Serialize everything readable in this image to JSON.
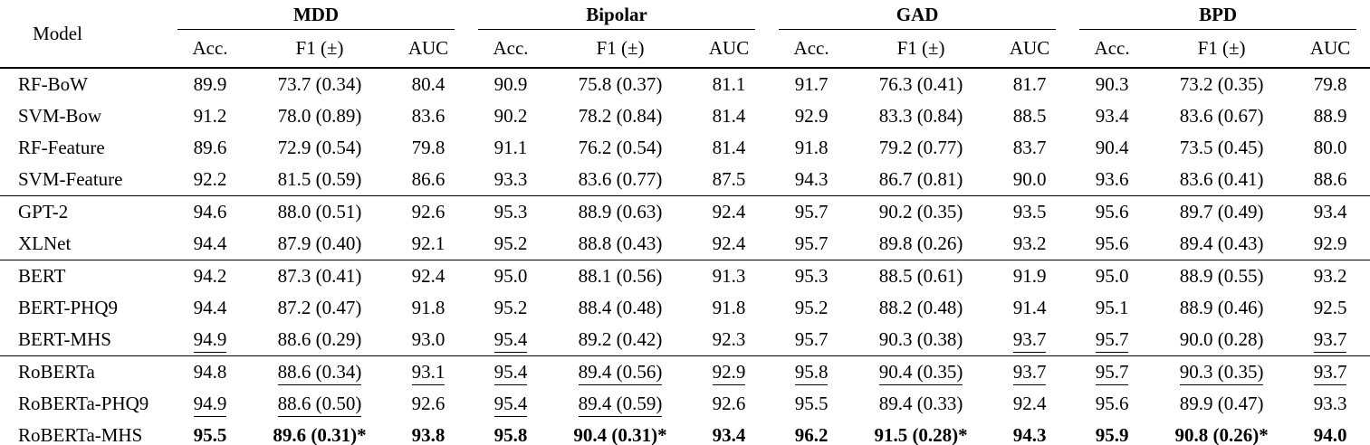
{
  "table": {
    "model_header": "Model",
    "groups": [
      {
        "label": "MDD"
      },
      {
        "label": "Bipolar"
      },
      {
        "label": "GAD"
      },
      {
        "label": "BPD"
      }
    ],
    "subheaders": [
      "Acc.",
      "F1 (±)",
      "AUC"
    ],
    "section_breaks_after": [
      3,
      5,
      8
    ],
    "rows": [
      {
        "model": "RF-BoW",
        "cells": [
          {
            "v": "89.9"
          },
          {
            "v": "73.7 (0.34)"
          },
          {
            "v": "80.4"
          },
          {
            "v": "90.9"
          },
          {
            "v": "75.8 (0.37)"
          },
          {
            "v": "81.1"
          },
          {
            "v": "91.7"
          },
          {
            "v": "76.3 (0.41)"
          },
          {
            "v": "81.7"
          },
          {
            "v": "90.3"
          },
          {
            "v": "73.2 (0.35)"
          },
          {
            "v": "79.8"
          }
        ]
      },
      {
        "model": "SVM-Bow",
        "cells": [
          {
            "v": "91.2"
          },
          {
            "v": "78.0 (0.89)"
          },
          {
            "v": "83.6"
          },
          {
            "v": "90.2"
          },
          {
            "v": "78.2 (0.84)"
          },
          {
            "v": "81.4"
          },
          {
            "v": "92.9"
          },
          {
            "v": "83.3 (0.84)"
          },
          {
            "v": "88.5"
          },
          {
            "v": "93.4"
          },
          {
            "v": "83.6 (0.67)"
          },
          {
            "v": "88.9"
          }
        ]
      },
      {
        "model": "RF-Feature",
        "cells": [
          {
            "v": "89.6"
          },
          {
            "v": "72.9 (0.54)"
          },
          {
            "v": "79.8"
          },
          {
            "v": "91.1"
          },
          {
            "v": "76.2 (0.54)"
          },
          {
            "v": "81.4"
          },
          {
            "v": "91.8"
          },
          {
            "v": "79.2 (0.77)"
          },
          {
            "v": "83.7"
          },
          {
            "v": "90.4"
          },
          {
            "v": "73.5 (0.45)"
          },
          {
            "v": "80.0"
          }
        ]
      },
      {
        "model": "SVM-Feature",
        "cells": [
          {
            "v": "92.2"
          },
          {
            "v": "81.5 (0.59)"
          },
          {
            "v": "86.6"
          },
          {
            "v": "93.3"
          },
          {
            "v": "83.6 (0.77)"
          },
          {
            "v": "87.5"
          },
          {
            "v": "94.3"
          },
          {
            "v": "86.7 (0.81)"
          },
          {
            "v": "90.0"
          },
          {
            "v": "93.6"
          },
          {
            "v": "83.6 (0.41)"
          },
          {
            "v": "88.6"
          }
        ]
      },
      {
        "model": "GPT-2",
        "cells": [
          {
            "v": "94.6"
          },
          {
            "v": "88.0 (0.51)"
          },
          {
            "v": "92.6"
          },
          {
            "v": "95.3"
          },
          {
            "v": "88.9 (0.63)"
          },
          {
            "v": "92.4"
          },
          {
            "v": "95.7"
          },
          {
            "v": "90.2 (0.35)"
          },
          {
            "v": "93.5"
          },
          {
            "v": "95.6"
          },
          {
            "v": "89.7 (0.49)"
          },
          {
            "v": "93.4"
          }
        ]
      },
      {
        "model": "XLNet",
        "cells": [
          {
            "v": "94.4"
          },
          {
            "v": "87.9 (0.40)"
          },
          {
            "v": "92.1"
          },
          {
            "v": "95.2"
          },
          {
            "v": "88.8 (0.43)"
          },
          {
            "v": "92.4"
          },
          {
            "v": "95.7"
          },
          {
            "v": "89.8 (0.26)"
          },
          {
            "v": "93.2"
          },
          {
            "v": "95.6"
          },
          {
            "v": "89.4 (0.43)"
          },
          {
            "v": "92.9"
          }
        ]
      },
      {
        "model": "BERT",
        "cells": [
          {
            "v": "94.2"
          },
          {
            "v": "87.3 (0.41)"
          },
          {
            "v": "92.4"
          },
          {
            "v": "95.0"
          },
          {
            "v": "88.1 (0.56)"
          },
          {
            "v": "91.3"
          },
          {
            "v": "95.3"
          },
          {
            "v": "88.5 (0.61)"
          },
          {
            "v": "91.9"
          },
          {
            "v": "95.0"
          },
          {
            "v": "88.9 (0.55)"
          },
          {
            "v": "93.2"
          }
        ]
      },
      {
        "model": "BERT-PHQ9",
        "cells": [
          {
            "v": "94.4"
          },
          {
            "v": "87.2 (0.47)"
          },
          {
            "v": "91.8"
          },
          {
            "v": "95.2"
          },
          {
            "v": "88.4 (0.48)"
          },
          {
            "v": "91.8"
          },
          {
            "v": "95.2"
          },
          {
            "v": "88.2 (0.48)"
          },
          {
            "v": "91.4"
          },
          {
            "v": "95.1"
          },
          {
            "v": "88.9 (0.46)"
          },
          {
            "v": "92.5"
          }
        ]
      },
      {
        "model": "BERT-MHS",
        "cells": [
          {
            "v": "94.9",
            "u": true
          },
          {
            "v": "88.6 (0.29)"
          },
          {
            "v": "93.0"
          },
          {
            "v": "95.4",
            "u": true
          },
          {
            "v": "89.2 (0.42)"
          },
          {
            "v": "92.3"
          },
          {
            "v": "95.7"
          },
          {
            "v": "90.3 (0.38)"
          },
          {
            "v": "93.7",
            "u": true
          },
          {
            "v": "95.7",
            "u": true
          },
          {
            "v": "90.0 (0.28)"
          },
          {
            "v": "93.7",
            "u": true
          }
        ]
      },
      {
        "model": "RoBERTa",
        "cells": [
          {
            "v": "94.8"
          },
          {
            "v": "88.6 (0.34)",
            "u": true
          },
          {
            "v": "93.1",
            "u": true
          },
          {
            "v": "95.4",
            "u": true
          },
          {
            "v": "89.4 (0.56)",
            "u": true
          },
          {
            "v": "92.9",
            "u": true
          },
          {
            "v": "95.8",
            "u": true
          },
          {
            "v": "90.4 (0.35)",
            "u": true
          },
          {
            "v": "93.7",
            "u": true
          },
          {
            "v": "95.7",
            "u": true
          },
          {
            "v": "90.3 (0.35)",
            "u": true
          },
          {
            "v": "93.7",
            "u": true
          }
        ]
      },
      {
        "model": "RoBERTa-PHQ9",
        "cells": [
          {
            "v": "94.9",
            "u": true
          },
          {
            "v": "88.6 (0.50)",
            "u": true
          },
          {
            "v": "92.6"
          },
          {
            "v": "95.4",
            "u": true
          },
          {
            "v": "89.4 (0.59)",
            "u": true
          },
          {
            "v": "92.6"
          },
          {
            "v": "95.5"
          },
          {
            "v": "89.4 (0.33)"
          },
          {
            "v": "92.4"
          },
          {
            "v": "95.6"
          },
          {
            "v": "89.9 (0.47)"
          },
          {
            "v": "93.3"
          }
        ]
      },
      {
        "model": "RoBERTa-MHS",
        "cells": [
          {
            "v": "95.5",
            "b": true
          },
          {
            "v": "89.6 (0.31)*",
            "b": true
          },
          {
            "v": "93.8",
            "b": true
          },
          {
            "v": "95.8",
            "b": true
          },
          {
            "v": "90.4 (0.31)*",
            "b": true
          },
          {
            "v": "93.4",
            "b": true
          },
          {
            "v": "96.2",
            "b": true
          },
          {
            "v": "91.5 (0.28)*",
            "b": true
          },
          {
            "v": "94.3",
            "b": true
          },
          {
            "v": "95.9",
            "b": true
          },
          {
            "v": "90.8 (0.26)*",
            "b": true
          },
          {
            "v": "94.0",
            "b": true
          }
        ]
      }
    ]
  }
}
